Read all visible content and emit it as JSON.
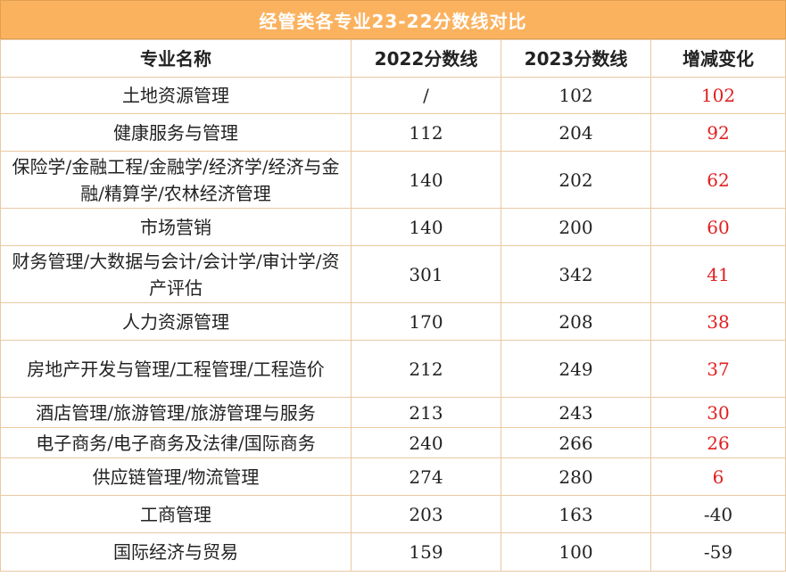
{
  "title": "经管类各专业23-22分数线对比",
  "columns": [
    "专业名称",
    "2022分数线",
    "2023分数线",
    "增减变化"
  ],
  "rows": [
    {
      "major": "土地资源管理",
      "y2022": "/",
      "y2023": "102",
      "change": "102",
      "trend": "up"
    },
    {
      "major": "健康服务与管理",
      "y2022": "112",
      "y2023": "204",
      "change": "92",
      "trend": "up"
    },
    {
      "major": "保险学/金融工程/金融学/经济学/经济与金融/精算学/农林经济管理",
      "y2022": "140",
      "y2023": "202",
      "change": "62",
      "trend": "up"
    },
    {
      "major": "市场营销",
      "y2022": "140",
      "y2023": "200",
      "change": "60",
      "trend": "up"
    },
    {
      "major": "财务管理/大数据与会计/会计学/审计学/资产评估",
      "y2022": "301",
      "y2023": "342",
      "change": "41",
      "trend": "up"
    },
    {
      "major": "人力资源管理",
      "y2022": "170",
      "y2023": "208",
      "change": "38",
      "trend": "up"
    },
    {
      "major": "房地产开发与管理/工程管理/工程造价",
      "y2022": "212",
      "y2023": "249",
      "change": "37",
      "trend": "up"
    },
    {
      "major": "酒店管理/旅游管理/旅游管理与服务",
      "y2022": "213",
      "y2023": "243",
      "change": "30",
      "trend": "up"
    },
    {
      "major": "电子商务/电子商务及法律/国际商务",
      "y2022": "240",
      "y2023": "266",
      "change": "26",
      "trend": "up"
    },
    {
      "major": "供应链管理/物流管理",
      "y2022": "274",
      "y2023": "280",
      "change": "6",
      "trend": "up"
    },
    {
      "major": "工商管理",
      "y2022": "203",
      "y2023": "163",
      "change": "-40",
      "trend": "down"
    },
    {
      "major": "国际经济与贸易",
      "y2022": "159",
      "y2023": "100",
      "change": "-59",
      "trend": "down"
    }
  ],
  "colors": {
    "header_bg": "#fbb25f",
    "increase": "#e02020",
    "decrease": "#222222",
    "border": "#e9c9a3"
  }
}
